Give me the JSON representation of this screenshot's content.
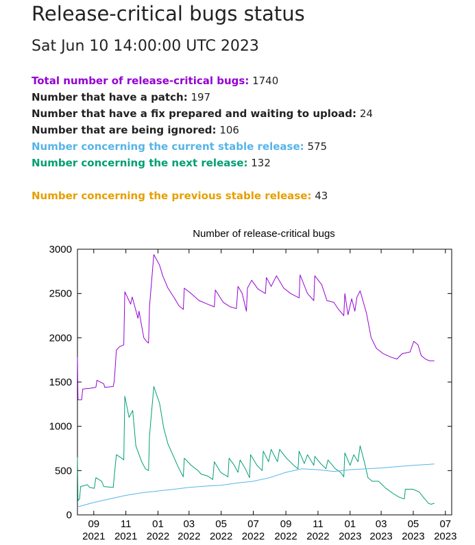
{
  "header": {
    "title": "Release-critical bugs status",
    "timestamp": "Sat Jun 10 14:00:00 UTC 2023"
  },
  "stats": [
    {
      "label": "Total number of release-critical bugs",
      "value": "1740",
      "color": "#9400d3"
    },
    {
      "label": "Number that have a patch",
      "value": "197",
      "color": "#222222"
    },
    {
      "label": "Number that have a fix prepared and waiting to upload",
      "value": "24",
      "color": "#222222"
    },
    {
      "label": "Number that are being ignored",
      "value": "106",
      "color": "#222222"
    },
    {
      "label": "Number concerning the current stable release",
      "value": "575",
      "color": "#56b4e9"
    },
    {
      "label": "Number concerning the next release",
      "value": "132",
      "color": "#009e73"
    },
    {
      "label": "Number concerning the previous stable release",
      "value": "43",
      "color": "#e69f00"
    }
  ],
  "chart_data": {
    "type": "line",
    "title": "Number of release-critical bugs",
    "xlabel": "",
    "ylabel": "",
    "ylim": [
      0,
      3000
    ],
    "xlim": [
      "2021-08-01",
      "2023-07-13"
    ],
    "grid": false,
    "legend": "none",
    "y_ticks": [
      0,
      500,
      1000,
      1500,
      2000,
      2500,
      3000
    ],
    "x_ticks": [
      {
        "date": "2021-09-01",
        "month": "09",
        "year": "2021"
      },
      {
        "date": "2021-11-01",
        "month": "11",
        "year": "2021"
      },
      {
        "date": "2022-01-01",
        "month": "01",
        "year": "2022"
      },
      {
        "date": "2022-03-01",
        "month": "03",
        "year": "2022"
      },
      {
        "date": "2022-05-01",
        "month": "05",
        "year": "2022"
      },
      {
        "date": "2022-07-01",
        "month": "07",
        "year": "2022"
      },
      {
        "date": "2022-09-01",
        "month": "09",
        "year": "2022"
      },
      {
        "date": "2022-11-01",
        "month": "11",
        "year": "2022"
      },
      {
        "date": "2023-01-01",
        "month": "01",
        "year": "2023"
      },
      {
        "date": "2023-03-01",
        "month": "03",
        "year": "2023"
      },
      {
        "date": "2023-05-01",
        "month": "05",
        "year": "2023"
      },
      {
        "date": "2023-07-01",
        "month": "07",
        "year": "2023"
      }
    ],
    "series": [
      {
        "color": "#9400d3",
        "points": [
          [
            "2021-08-01",
            1780
          ],
          [
            "2021-08-02",
            1300
          ],
          [
            "2021-08-09",
            1300
          ],
          [
            "2021-08-11",
            1420
          ],
          [
            "2021-08-25",
            1430
          ],
          [
            "2021-09-05",
            1440
          ],
          [
            "2021-09-07",
            1520
          ],
          [
            "2021-09-20",
            1480
          ],
          [
            "2021-09-22",
            1440
          ],
          [
            "2021-10-08",
            1450
          ],
          [
            "2021-10-10",
            1520
          ],
          [
            "2021-10-14",
            1860
          ],
          [
            "2021-10-20",
            1900
          ],
          [
            "2021-10-28",
            1920
          ],
          [
            "2021-10-30",
            2520
          ],
          [
            "2021-11-10",
            2380
          ],
          [
            "2021-11-13",
            2460
          ],
          [
            "2021-11-24",
            2220
          ],
          [
            "2021-11-26",
            2300
          ],
          [
            "2021-12-05",
            2000
          ],
          [
            "2021-12-10",
            1960
          ],
          [
            "2021-12-14",
            1940
          ],
          [
            "2021-12-16",
            2360
          ],
          [
            "2021-12-24",
            2940
          ],
          [
            "2022-01-04",
            2820
          ],
          [
            "2022-01-10",
            2700
          ],
          [
            "2022-01-20",
            2560
          ],
          [
            "2022-02-01",
            2450
          ],
          [
            "2022-02-10",
            2360
          ],
          [
            "2022-02-18",
            2320
          ],
          [
            "2022-02-20",
            2560
          ],
          [
            "2022-03-05",
            2500
          ],
          [
            "2022-03-20",
            2420
          ],
          [
            "2022-04-05",
            2380
          ],
          [
            "2022-04-18",
            2350
          ],
          [
            "2022-04-20",
            2540
          ],
          [
            "2022-05-05",
            2400
          ],
          [
            "2022-05-18",
            2350
          ],
          [
            "2022-05-30",
            2330
          ],
          [
            "2022-06-02",
            2580
          ],
          [
            "2022-06-10",
            2500
          ],
          [
            "2022-06-18",
            2300
          ],
          [
            "2022-06-20",
            2560
          ],
          [
            "2022-06-28",
            2650
          ],
          [
            "2022-07-10",
            2550
          ],
          [
            "2022-07-24",
            2500
          ],
          [
            "2022-07-26",
            2680
          ],
          [
            "2022-08-04",
            2580
          ],
          [
            "2022-08-14",
            2700
          ],
          [
            "2022-08-28",
            2560
          ],
          [
            "2022-09-10",
            2500
          ],
          [
            "2022-09-26",
            2450
          ],
          [
            "2022-09-28",
            2710
          ],
          [
            "2022-10-12",
            2500
          ],
          [
            "2022-10-24",
            2420
          ],
          [
            "2022-10-26",
            2700
          ],
          [
            "2022-11-08",
            2600
          ],
          [
            "2022-11-18",
            2420
          ],
          [
            "2022-12-01",
            2400
          ],
          [
            "2022-12-10",
            2320
          ],
          [
            "2022-12-20",
            2250
          ],
          [
            "2022-12-22",
            2500
          ],
          [
            "2022-12-28",
            2260
          ],
          [
            "2023-01-04",
            2440
          ],
          [
            "2023-01-10",
            2300
          ],
          [
            "2023-01-14",
            2460
          ],
          [
            "2023-01-20",
            2530
          ],
          [
            "2023-02-01",
            2280
          ],
          [
            "2023-02-10",
            2000
          ],
          [
            "2023-02-20",
            1880
          ],
          [
            "2023-03-05",
            1820
          ],
          [
            "2023-03-20",
            1780
          ],
          [
            "2023-03-31",
            1760
          ],
          [
            "2023-04-10",
            1820
          ],
          [
            "2023-04-25",
            1840
          ],
          [
            "2023-05-02",
            1960
          ],
          [
            "2023-05-10",
            1920
          ],
          [
            "2023-05-16",
            1800
          ],
          [
            "2023-05-24",
            1760
          ],
          [
            "2023-06-01",
            1740
          ],
          [
            "2023-06-10",
            1740
          ]
        ]
      },
      {
        "color": "#009e73",
        "points": [
          [
            "2021-08-01",
            650
          ],
          [
            "2021-08-02",
            160
          ],
          [
            "2021-08-05",
            180
          ],
          [
            "2021-08-07",
            320
          ],
          [
            "2021-08-20",
            340
          ],
          [
            "2021-08-24",
            310
          ],
          [
            "2021-09-02",
            300
          ],
          [
            "2021-09-05",
            420
          ],
          [
            "2021-09-16",
            380
          ],
          [
            "2021-09-20",
            320
          ],
          [
            "2021-10-08",
            310
          ],
          [
            "2021-10-10",
            450
          ],
          [
            "2021-10-14",
            680
          ],
          [
            "2021-10-24",
            640
          ],
          [
            "2021-10-28",
            620
          ],
          [
            "2021-10-30",
            1340
          ],
          [
            "2021-11-07",
            1100
          ],
          [
            "2021-11-14",
            1180
          ],
          [
            "2021-11-20",
            780
          ],
          [
            "2021-12-01",
            600
          ],
          [
            "2021-12-08",
            520
          ],
          [
            "2021-12-14",
            500
          ],
          [
            "2021-12-16",
            900
          ],
          [
            "2021-12-24",
            1450
          ],
          [
            "2022-01-04",
            1260
          ],
          [
            "2022-01-12",
            980
          ],
          [
            "2022-01-20",
            800
          ],
          [
            "2022-02-01",
            640
          ],
          [
            "2022-02-10",
            520
          ],
          [
            "2022-02-18",
            430
          ],
          [
            "2022-02-20",
            640
          ],
          [
            "2022-03-05",
            560
          ],
          [
            "2022-03-18",
            500
          ],
          [
            "2022-03-24",
            460
          ],
          [
            "2022-04-05",
            440
          ],
          [
            "2022-04-15",
            400
          ],
          [
            "2022-04-18",
            600
          ],
          [
            "2022-04-30",
            480
          ],
          [
            "2022-05-14",
            430
          ],
          [
            "2022-05-16",
            640
          ],
          [
            "2022-05-26",
            560
          ],
          [
            "2022-06-02",
            480
          ],
          [
            "2022-06-06",
            620
          ],
          [
            "2022-06-16",
            520
          ],
          [
            "2022-06-24",
            420
          ],
          [
            "2022-06-26",
            680
          ],
          [
            "2022-07-08",
            560
          ],
          [
            "2022-07-18",
            500
          ],
          [
            "2022-07-20",
            720
          ],
          [
            "2022-07-30",
            600
          ],
          [
            "2022-08-04",
            740
          ],
          [
            "2022-08-16",
            600
          ],
          [
            "2022-08-20",
            740
          ],
          [
            "2022-09-02",
            640
          ],
          [
            "2022-09-16",
            560
          ],
          [
            "2022-09-24",
            520
          ],
          [
            "2022-09-26",
            720
          ],
          [
            "2022-10-06",
            580
          ],
          [
            "2022-10-12",
            680
          ],
          [
            "2022-10-24",
            560
          ],
          [
            "2022-10-26",
            660
          ],
          [
            "2022-11-06",
            580
          ],
          [
            "2022-11-16",
            520
          ],
          [
            "2022-11-20",
            620
          ],
          [
            "2022-12-04",
            520
          ],
          [
            "2022-12-14",
            480
          ],
          [
            "2022-12-20",
            430
          ],
          [
            "2022-12-22",
            700
          ],
          [
            "2023-01-01",
            560
          ],
          [
            "2023-01-08",
            680
          ],
          [
            "2023-01-16",
            600
          ],
          [
            "2023-01-20",
            780
          ],
          [
            "2023-01-28",
            600
          ],
          [
            "2023-02-04",
            420
          ],
          [
            "2023-02-12",
            380
          ],
          [
            "2023-02-24",
            380
          ],
          [
            "2023-03-10",
            300
          ],
          [
            "2023-03-24",
            240
          ],
          [
            "2023-04-04",
            200
          ],
          [
            "2023-04-14",
            180
          ],
          [
            "2023-04-16",
            290
          ],
          [
            "2023-04-30",
            290
          ],
          [
            "2023-05-12",
            260
          ],
          [
            "2023-05-20",
            200
          ],
          [
            "2023-05-30",
            130
          ],
          [
            "2023-06-04",
            120
          ],
          [
            "2023-06-10",
            132
          ]
        ]
      },
      {
        "color": "#56b4e9",
        "points": [
          [
            "2021-08-01",
            90
          ],
          [
            "2021-09-01",
            140
          ],
          [
            "2021-10-01",
            180
          ],
          [
            "2021-11-01",
            220
          ],
          [
            "2021-12-01",
            250
          ],
          [
            "2022-01-01",
            270
          ],
          [
            "2022-02-01",
            290
          ],
          [
            "2022-03-01",
            310
          ],
          [
            "2022-04-01",
            325
          ],
          [
            "2022-05-01",
            335
          ],
          [
            "2022-06-01",
            360
          ],
          [
            "2022-07-01",
            380
          ],
          [
            "2022-08-01",
            420
          ],
          [
            "2022-09-01",
            480
          ],
          [
            "2022-10-01",
            520
          ],
          [
            "2022-11-01",
            510
          ],
          [
            "2022-12-01",
            490
          ],
          [
            "2023-01-01",
            510
          ],
          [
            "2023-02-01",
            520
          ],
          [
            "2023-03-01",
            530
          ],
          [
            "2023-04-01",
            545
          ],
          [
            "2023-05-01",
            560
          ],
          [
            "2023-06-01",
            570
          ],
          [
            "2023-06-10",
            575
          ]
        ]
      }
    ]
  }
}
